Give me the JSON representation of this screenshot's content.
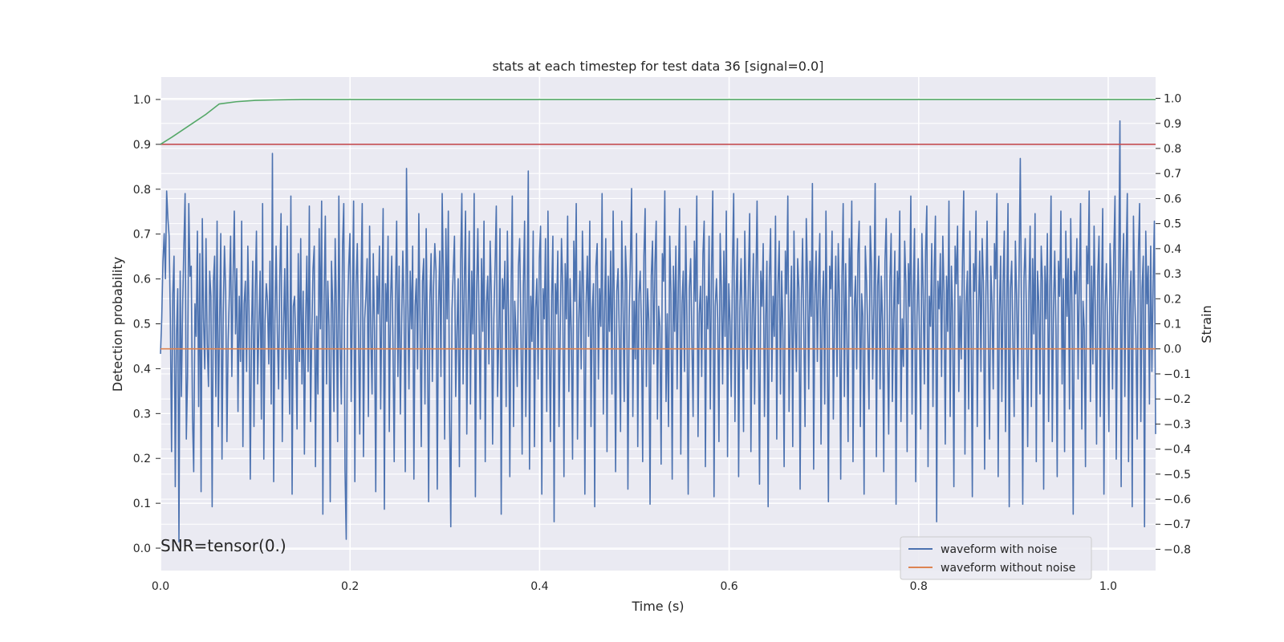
{
  "chart_data": {
    "type": "line",
    "title": "stats at each timestep for test data 36 [signal=0.0]",
    "xlabel": "Time (s)",
    "ylabel": "Detection probability",
    "y2label": "Strain",
    "xlim": [
      0.0,
      1.05
    ],
    "ylim": [
      -0.05,
      1.05
    ],
    "y2lim": [
      -0.885,
      1.085
    ],
    "xticks": [
      "0.0",
      "0.2",
      "0.4",
      "0.6",
      "0.8",
      "1.0"
    ],
    "yticks": [
      "0.0",
      "0.1",
      "0.2",
      "0.3",
      "0.4",
      "0.5",
      "0.6",
      "0.7",
      "0.8",
      "0.9",
      "1.0"
    ],
    "y2ticks": [
      "−0.8",
      "−0.7",
      "−0.6",
      "−0.5",
      "−0.4",
      "−0.3",
      "−0.2",
      "−0.1",
      "0.0",
      "0.1",
      "0.2",
      "0.3",
      "0.4",
      "0.5",
      "0.6",
      "0.7",
      "0.8",
      "0.9",
      "1.0"
    ],
    "grid": true,
    "legend_position": "bottom-right",
    "annotation": "SNR=tensor(0.)",
    "series": [
      {
        "name": "waveform with noise",
        "axis": "right",
        "color": "#4c72b0",
        "x_start": 0.0,
        "x_end": 1.05,
        "values": [
          -0.02,
          0.12,
          0.35,
          0.46,
          0.28,
          0.63,
          0.52,
          0.45,
          0.12,
          -0.41,
          0.22,
          0.37,
          -0.55,
          0.05,
          0.24,
          -0.77,
          0.31,
          -0.19,
          0.17,
          0.41,
          0.62,
          -0.36,
          -0.11,
          0.58,
          0.29,
          0.33,
          -0.27,
          -0.49,
          0.18,
          0.05,
          0.47,
          -0.23,
          0.38,
          -0.57,
          0.52,
          0.12,
          -0.08,
          0.44,
          0.02,
          -0.15,
          0.31,
          0.21,
          -0.63,
          0.27,
          0.37,
          -0.19,
          0.51,
          -0.31,
          0.09,
          0.46,
          -0.44,
          0.14,
          0.41,
          0.23,
          -0.37,
          0.03,
          0.22,
          0.45,
          -0.11,
          0.28,
          0.55,
          0.06,
          0.32,
          -0.25,
          0.21,
          -0.05,
          0.51,
          -0.39,
          0.18,
          0.27,
          -0.09,
          0.41,
          0.13,
          -0.52,
          0.06,
          0.35,
          -0.31,
          0.22,
          0.47,
          -0.14,
          0.09,
          0.31,
          -0.28,
          0.58,
          -0.44,
          0.11,
          0.26,
          0.19,
          -0.06,
          0.35,
          -0.22,
          0.78,
          -0.53,
          0.11,
          0.41,
          0.07,
          -0.16,
          0.29,
          0.54,
          -0.37,
          0.08,
          0.32,
          -0.12,
          0.49,
          0.03,
          -0.26,
          0.61,
          -0.58,
          0.17,
          0.21,
          0.02,
          -0.32,
          0.38,
          -0.05,
          0.44,
          -0.14,
          0.23,
          -0.42,
          0.11,
          0.37,
          -0.09,
          0.57,
          -0.29,
          0.06,
          0.32,
          0.41,
          -0.47,
          0.13,
          -0.18,
          0.48,
          0.08,
          0.59,
          -0.66,
          0.21,
          0.53,
          -0.14,
          0.27,
          0.09,
          -0.61,
          0.35,
          0.18,
          -0.25,
          0.44,
          0.16,
          -0.37,
          0.61,
          0.03,
          -0.22,
          0.41,
          0.58,
          -0.48,
          -0.76,
          0.12,
          0.33,
          0.46,
          -0.21,
          0.19,
          0.59,
          -0.53,
          0.26,
          0.42,
          0.06,
          -0.34,
          0.25,
          0.58,
          -0.43,
          0.12,
          0.21,
          0.36,
          -0.27,
          0.49,
          0.05,
          -0.18,
          0.38,
          0.07,
          -0.57,
          0.29,
          0.14,
          0.41,
          -0.24,
          0.18,
          0.56,
          -0.64,
          0.26,
          0.11,
          0.45,
          -0.33,
          0.19,
          0.37,
          0.02,
          -0.45,
          0.21,
          0.51,
          -0.11,
          0.33,
          -0.26,
          0.09,
          0.39,
          0.16,
          -0.49,
          0.72,
          0.21,
          -0.16,
          0.31,
          0.08,
          0.41,
          -0.52,
          0.17,
          0.28,
          -0.08,
          0.54,
          0.11,
          -0.39,
          0.27,
          0.36,
          -0.22,
          0.48,
          0.05,
          -0.61,
          0.19,
          0.38,
          -0.13,
          0.25,
          0.42,
          0.31,
          -0.56,
          0.16,
          0.39,
          -0.11,
          0.62,
          0.27,
          -0.36,
          0.48,
          0.12,
          0.55,
          -0.27,
          -0.71,
          0.16,
          0.31,
          0.45,
          -0.19,
          0.07,
          0.28,
          -0.47,
          0.35,
          0.62,
          -0.14,
          0.26,
          0.55,
          -0.34,
          0.13,
          0.47,
          -0.22,
          0.31,
          0.06,
          0.62,
          -0.59,
          0.22,
          0.48,
          0.11,
          -0.28,
          0.36,
          0.07,
          0.51,
          -0.45,
          0.18,
          0.29,
          -0.06,
          0.43,
          0.21,
          -0.38,
          0.12,
          0.33,
          0.57,
          -0.19,
          0.04,
          0.48,
          -0.66,
          0.28,
          0.16,
          0.35,
          -0.23,
          0.47,
          0.13,
          -0.51,
          0.22,
          0.61,
          -0.31,
          0.19,
          0.06,
          -0.15,
          0.33,
          0.44,
          0.09,
          -0.42,
          0.25,
          0.51,
          -0.27,
          0.14,
          0.71,
          -0.48,
          0.21,
          0.03,
          0.47,
          -0.39,
          0.16,
          0.28,
          -0.12,
          0.36,
          0.49,
          -0.58,
          0.24,
          0.12,
          0.44,
          -0.25,
          0.55,
          0.07,
          -0.37,
          0.21,
          0.45,
          -0.69,
          0.26,
          0.14,
          0.39,
          -0.31,
          0.08,
          0.44,
          0.25,
          -0.51,
          0.34,
          0.12,
          0.53,
          -0.17,
          0.28,
          0.06,
          -0.44,
          0.43,
          0.19,
          0.58,
          -0.36,
          0.11,
          0.31,
          -0.08,
          0.47,
          0.22,
          -0.58,
          0.18,
          0.37,
          0.05,
          0.51,
          -0.31,
          0.15,
          0.26,
          -0.63,
          0.33,
          0.42,
          -0.12,
          0.24,
          0.09,
          0.62,
          -0.26,
          0.16,
          0.44,
          -0.41,
          0.29,
          0.07,
          0.39,
          -0.18,
          0.55,
          0.14,
          -0.49,
          0.23,
          0.32,
          0.05,
          -0.33,
          0.51,
          0.18,
          -0.21,
          0.41,
          0.27,
          -0.56,
          0.12,
          0.35,
          0.64,
          -0.27,
          0.19,
          -0.04,
          0.46,
          -0.39,
          0.22,
          0.31,
          0.08,
          -0.45,
          0.37,
          0.56,
          -0.15,
          0.24,
          0.11,
          -0.62,
          0.29,
          0.43,
          -0.06,
          0.34,
          0.51,
          -0.28,
          0.17,
          0.09,
          -0.46,
          0.38,
          0.27,
          0.63,
          -0.21,
          0.14,
          -0.31,
          0.45,
          0.22,
          -0.52,
          0.33,
          0.07,
          0.41,
          -0.16,
          0.26,
          0.56,
          -0.42,
          0.18,
          0.31,
          -0.09,
          0.49,
          0.12,
          -0.58,
          0.24,
          0.36,
          0.04,
          -0.27,
          0.43,
          0.19,
          0.61,
          -0.35,
          0.14,
          0.25,
          -0.11,
          0.38,
          0.51,
          -0.47,
          0.21,
          0.08,
          0.45,
          -0.24,
          0.32,
          0.63,
          -0.59,
          0.17,
          0.28,
          0.12,
          -0.37,
          0.46,
          0.23,
          -0.14,
          0.39,
          0.05,
          0.55,
          -0.43,
          0.26,
          0.11,
          -0.19,
          0.34,
          0.62,
          -0.29,
          0.21,
          0.44,
          -0.51,
          0.16,
          0.36,
          0.07,
          -0.33,
          0.47,
          0.18,
          -0.08,
          0.29,
          0.54,
          -0.41,
          0.13,
          0.38,
          -0.22,
          0.25,
          0.59,
          0.09,
          -0.54,
          0.31,
          0.17,
          0.42,
          -0.27,
          0.12,
          0.35,
          -0.63,
          0.28,
          0.48,
          -0.13,
          0.21,
          0.05,
          0.53,
          -0.36,
          0.26,
          0.43,
          -0.18,
          0.31,
          0.07,
          -0.47,
          0.39,
          0.22,
          0.61,
          -0.25,
          0.14,
          0.33,
          -0.39,
          0.47,
          0.11,
          -0.09,
          0.36,
          0.24,
          -0.56,
          0.19,
          0.44,
          0.08,
          -0.31,
          0.52,
          0.27,
          -0.16,
          0.35,
          0.13,
          0.66,
          -0.48,
          0.21,
          0.39,
          -0.05,
          0.28,
          0.46,
          -0.38,
          0.16,
          0.31,
          -0.22,
          0.55,
          0.09,
          -0.61,
          0.33,
          0.24,
          0.47,
          -0.28,
          0.12,
          0.37,
          -0.11,
          0.42,
          0.19,
          -0.52,
          0.28,
          0.58,
          -0.19,
          0.34,
          0.06,
          -0.37,
          0.44,
          0.21,
          0.59,
          -0.45,
          0.16,
          0.29,
          -0.08,
          0.38,
          0.51,
          -0.31,
          0.22,
          0.13,
          -0.58,
          0.41,
          0.27,
          0.06,
          -0.24,
          0.49,
          0.33,
          -0.12,
          0.18,
          0.66,
          -0.43,
          0.25,
          0.37,
          -0.16,
          0.29,
          0.11,
          -0.49,
          0.35,
          0.52,
          0.03,
          -0.34,
          0.27,
          0.46,
          -0.21,
          0.14,
          0.39,
          -0.62,
          0.31,
          0.18,
          0.55,
          -0.29,
          0.12,
          -0.07,
          0.43,
          0.26,
          -0.41,
          0.34,
          0.17,
          0.61,
          -0.26,
          0.22,
          0.48,
          -0.53,
          0.13,
          0.36,
          0.05,
          -0.32,
          0.46,
          0.24,
          -0.14,
          0.39,
          0.57,
          -0.47,
          0.21,
          0.09,
          0.42,
          -0.23,
          0.31,
          0.53,
          -0.69,
          0.27,
          0.16,
          0.38,
          -0.11,
          0.45,
          0.22,
          -0.38,
          0.29,
          0.07,
          0.59,
          -0.27,
          0.33,
          0.14,
          -0.55,
          0.41,
          0.26,
          0.49,
          -0.17,
          0.21,
          -0.04,
          0.36,
          0.63,
          -0.42,
          0.18,
          0.31,
          -0.24,
          0.47,
          0.12,
          -0.59,
          0.34,
          0.23,
          0.55,
          -0.31,
          0.16,
          0.39,
          -0.09,
          0.44,
          0.27,
          -0.48,
          0.21,
          0.51,
          0.06,
          -0.36,
          0.33,
          0.18,
          -0.16,
          0.42,
          0.28,
          0.62,
          -0.51,
          0.14,
          0.37,
          -0.21,
          0.26,
          0.47,
          -0.33,
          0.19,
          0.58,
          -0.63,
          0.24,
          0.35,
          0.03,
          -0.27,
          0.43,
          0.21,
          -0.12,
          0.31,
          0.76,
          0.11,
          -0.62,
          0.28,
          0.44,
          0.13,
          -0.39,
          0.22,
          0.49,
          -0.23,
          0.36,
          0.06,
          0.54,
          -0.45,
          0.31,
          0.19,
          -0.18,
          0.41,
          0.27,
          -0.56,
          0.33,
          0.12,
          0.46,
          -0.29,
          0.24,
          0.61,
          -0.37,
          0.16,
          0.39,
          0.08,
          -0.51,
          0.35,
          0.21,
          0.55,
          -0.14,
          0.28,
          -0.41,
          0.47,
          0.13,
          0.36,
          -0.24,
          0.52,
          0.18,
          -0.66,
          0.31,
          0.22,
          0.44,
          -0.12,
          0.27,
          0.58,
          -0.32,
          0.19,
          0.08,
          -0.47,
          0.41,
          0.26,
          0.63,
          -0.21,
          0.33,
          -0.06,
          0.49,
          0.15,
          -0.38,
          0.29,
          0.45,
          -0.27,
          0.21,
          0.56,
          -0.58,
          0.17,
          0.34,
          0.07,
          -0.33,
          0.42,
          0.24,
          -0.16,
          0.38,
          0.61,
          -0.44,
          0.13,
          0.29,
          0.91,
          -0.55,
          0.26,
          0.46,
          -0.19,
          0.35,
          0.62,
          -0.45,
          0.18,
          0.31,
          -0.63,
          0.53,
          0.21,
          0.05,
          -0.36,
          0.39,
          0.58,
          -0.29,
          0.24,
          0.37,
          -0.71,
          0.47,
          0.18,
          0.33,
          -0.22,
          0.41,
          -0.09,
          0.26,
          0.51,
          -0.34
        ]
      },
      {
        "name": "waveform without noise",
        "axis": "right",
        "color": "#dd8452",
        "x": [
          0.0,
          1.05
        ],
        "values": [
          0.0,
          0.0
        ]
      },
      {
        "axis": "left",
        "color": "#55a868",
        "x": [
          0.0,
          0.012,
          0.024,
          0.036,
          0.048,
          0.062,
          0.08,
          0.1,
          0.12,
          0.15,
          1.05
        ],
        "values": [
          0.9,
          0.916,
          0.933,
          0.95,
          0.967,
          0.99,
          0.995,
          0.998,
          0.999,
          1.0,
          1.0
        ]
      },
      {
        "axis": "left",
        "color": "#c44e52",
        "x": [
          0.0,
          1.05
        ],
        "values": [
          0.9,
          0.9
        ]
      }
    ]
  }
}
